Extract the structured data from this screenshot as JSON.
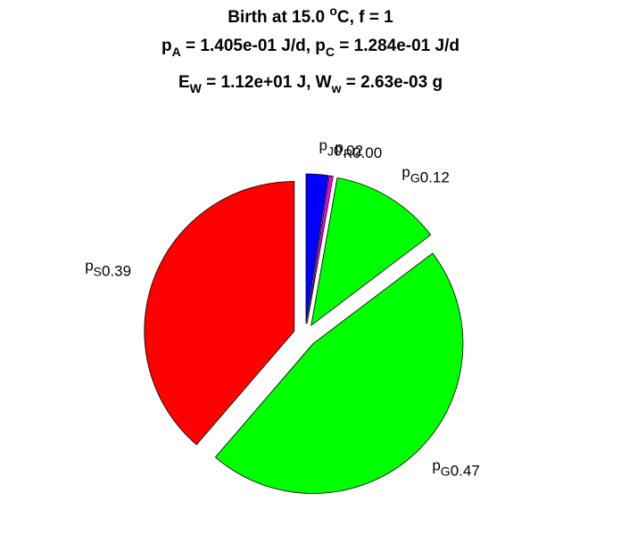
{
  "chart_data": {
    "type": "pie",
    "title": [
      [
        {
          "text": "Birth at 15.0 "
        },
        {
          "text": "o",
          "script": "sup"
        },
        {
          "text": "C, f = 1"
        }
      ],
      [
        {
          "text": "p"
        },
        {
          "text": "A",
          "script": "sub"
        },
        {
          "text": " = 1.405e-01 J/d, p"
        },
        {
          "text": "C",
          "script": "sub"
        },
        {
          "text": " = 1.284e-01 J/d"
        }
      ],
      [
        {
          "text": "E"
        },
        {
          "text": "W",
          "script": "sub"
        },
        {
          "text": " = 1.12e+01 J, W"
        },
        {
          "text": "w",
          "script": "sub"
        },
        {
          "text": " = 2.63e-03 g"
        }
      ]
    ],
    "categories": [
      {
        "text": "p",
        "sub": "J"
      },
      {
        "text": "p",
        "sub": "R"
      },
      {
        "text": "p",
        "sub": "G"
      },
      {
        "text": "p",
        "sub": "G"
      },
      {
        "text": "p",
        "sub": "S"
      }
    ],
    "values": [
      0.024,
      0.004,
      0.12,
      0.47,
      0.39
    ],
    "value_labels": [
      "0.02",
      "0.00",
      "0.12",
      "0.47",
      "0.39"
    ],
    "colors": [
      "#0000ff",
      "#ff00ff",
      "#00ff00",
      "#00ff00",
      "#ff0000"
    ],
    "explode": true
  }
}
